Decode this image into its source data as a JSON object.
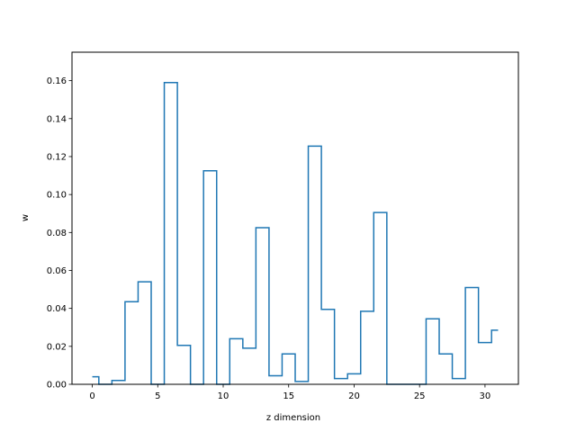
{
  "chart_data": {
    "type": "step",
    "xlabel": "z dimension",
    "ylabel": "w",
    "xlim": [
      -1.55,
      32.55
    ],
    "ylim": [
      0,
      0.175
    ],
    "xticks": [
      0,
      5,
      10,
      15,
      20,
      25,
      30
    ],
    "yticks": [
      0.0,
      0.02,
      0.04,
      0.06,
      0.08,
      0.1,
      0.12,
      0.14,
      0.16
    ],
    "xtick_labels": [
      "0",
      "5",
      "10",
      "15",
      "20",
      "25",
      "30"
    ],
    "ytick_labels": [
      "0.00",
      "0.02",
      "0.04",
      "0.06",
      "0.08",
      "0.10",
      "0.12",
      "0.14",
      "0.16"
    ],
    "step_where": "mid",
    "grid": false,
    "color": "#1f77b4",
    "x": [
      0,
      1,
      2,
      3,
      4,
      5,
      6,
      7,
      8,
      9,
      10,
      11,
      12,
      13,
      14,
      15,
      16,
      17,
      18,
      19,
      20,
      21,
      22,
      23,
      24,
      25,
      26,
      27,
      28,
      29,
      30,
      31
    ],
    "values": [
      0.004,
      0.0,
      0.002,
      0.0435,
      0.054,
      0.0,
      0.159,
      0.0205,
      0.0,
      0.1125,
      0.0,
      0.024,
      0.019,
      0.0825,
      0.0045,
      0.016,
      0.0015,
      0.1255,
      0.0395,
      0.003,
      0.0055,
      0.0385,
      0.0905,
      0.0,
      0.0,
      0.0,
      0.0345,
      0.016,
      0.003,
      0.051,
      0.022,
      0.0285
    ]
  }
}
